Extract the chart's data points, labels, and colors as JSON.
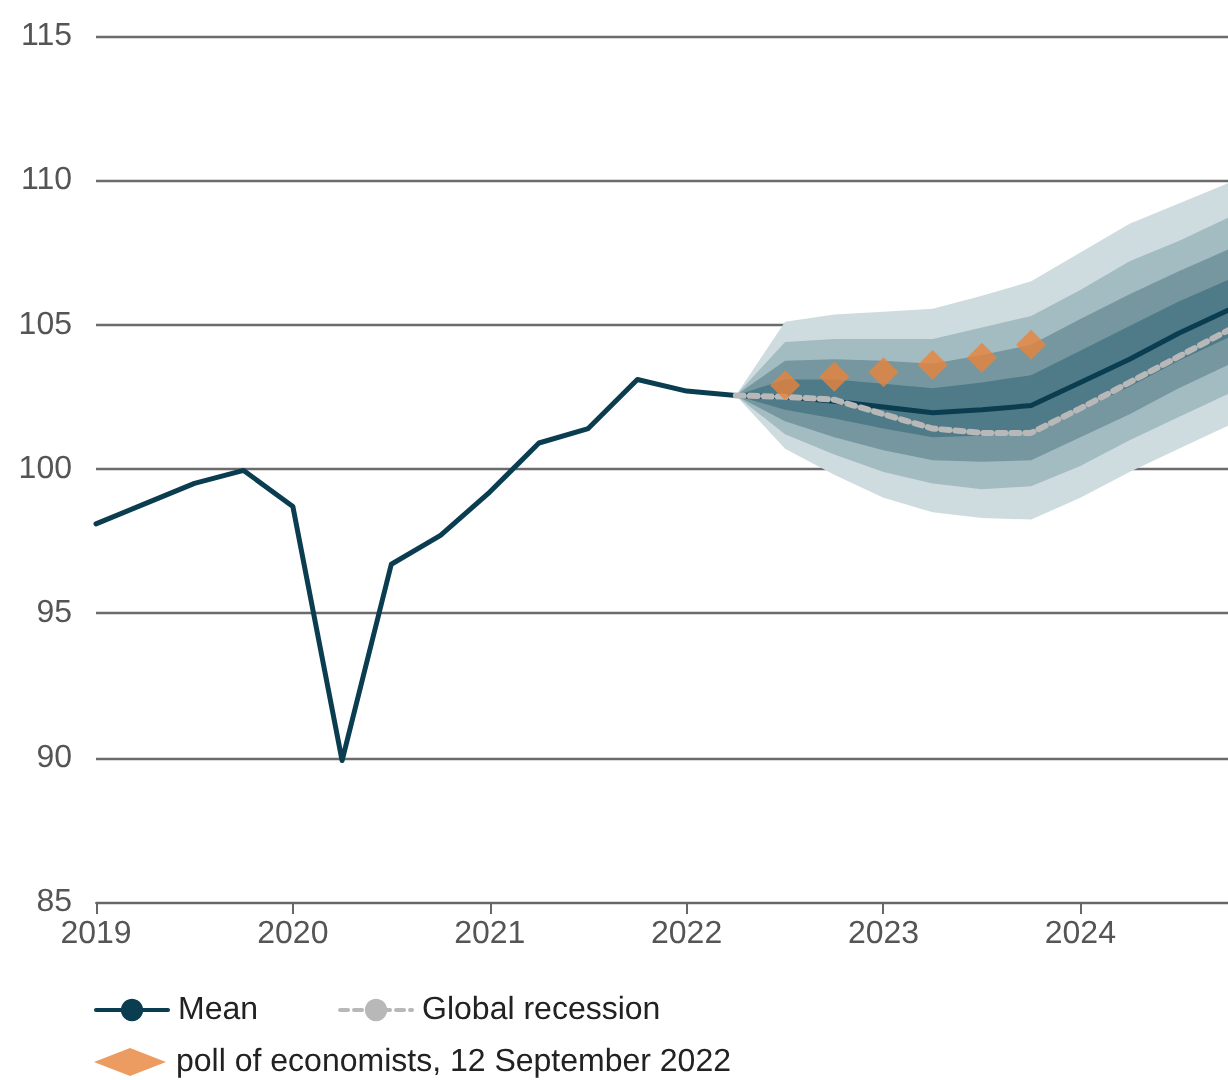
{
  "chart_data": {
    "type": "line",
    "xlim": [
      2019,
      2024.75
    ],
    "xticks": [
      2019,
      2020,
      2021,
      2022,
      2023,
      2024
    ],
    "ylim": [
      85,
      115
    ],
    "yticks": [
      85,
      90,
      95,
      100,
      105,
      110,
      115
    ],
    "grid": "y",
    "legend": "bottom",
    "series": [
      {
        "type": "area",
        "color": "#cfdcdf",
        "values": [
          null,
          null,
          null,
          null,
          null,
          null,
          null,
          null,
          null,
          null,
          null
        ],
        "x": [
          2022.25,
          2022.5,
          2022.75,
          2023,
          2023.25,
          2023.5,
          2023.75,
          2024,
          2024.25,
          2024.5,
          2024.75
        ],
        "lower": [
          102.55,
          100.7,
          99.8,
          99.0,
          98.5,
          98.3,
          98.25,
          99.0,
          99.9,
          100.7,
          101.5
        ],
        "upper": [
          102.55,
          105.1,
          105.35,
          105.45,
          105.55,
          106.0,
          106.5,
          107.5,
          108.5,
          109.2,
          109.9
        ]
      },
      {
        "type": "area",
        "color": "#a3bcc2",
        "values": [
          null,
          null,
          null,
          null,
          null,
          null,
          null,
          null,
          null,
          null,
          null
        ],
        "x": [
          2022.25,
          2022.5,
          2022.75,
          2023,
          2023.25,
          2023.5,
          2023.75,
          2024,
          2024.25,
          2024.5,
          2024.75
        ],
        "lower": [
          102.55,
          101.2,
          100.5,
          99.9,
          99.5,
          99.3,
          99.4,
          100.1,
          101.0,
          101.8,
          102.6
        ],
        "upper": [
          102.55,
          104.4,
          104.5,
          104.5,
          104.5,
          104.9,
          105.3,
          106.2,
          107.2,
          107.9,
          108.7
        ]
      },
      {
        "type": "area",
        "color": "#76979f",
        "values": [
          null,
          null,
          null,
          null,
          null,
          null,
          null,
          null,
          null,
          null,
          null
        ],
        "x": [
          2022.25,
          2022.5,
          2022.75,
          2023,
          2023.25,
          2023.5,
          2023.75,
          2024,
          2024.25,
          2024.5,
          2024.75
        ],
        "lower": [
          102.55,
          101.65,
          101.1,
          100.65,
          100.3,
          100.25,
          100.3,
          101.1,
          101.9,
          102.8,
          103.6
        ],
        "upper": [
          102.55,
          103.75,
          103.8,
          103.75,
          103.65,
          103.95,
          104.3,
          105.2,
          106.05,
          106.85,
          107.6
        ]
      },
      {
        "type": "area",
        "color": "#4f7a88",
        "values": [
          null,
          null,
          null,
          null,
          null,
          null,
          null,
          null,
          null,
          null,
          null
        ],
        "x": [
          2022.25,
          2022.5,
          2022.75,
          2023,
          2023.25,
          2023.5,
          2023.75,
          2024,
          2024.25,
          2024.5,
          2024.75
        ],
        "lower": [
          102.55,
          102.05,
          101.75,
          101.4,
          101.1,
          101.15,
          101.25,
          102.05,
          102.85,
          103.75,
          104.55
        ],
        "upper": [
          102.55,
          103.1,
          103.1,
          102.95,
          102.8,
          103.0,
          103.25,
          104.1,
          104.95,
          105.8,
          106.55
        ]
      },
      {
        "name": "Mean",
        "color": "#0b3d50",
        "marker": "none",
        "line_style": "solid",
        "x": [
          2019,
          2019.25,
          2019.5,
          2019.75,
          2020,
          2020.25,
          2020.5,
          2020.75,
          2021,
          2021.25,
          2021.5,
          2021.75,
          2022,
          2022.25,
          2022.5,
          2022.75,
          2023,
          2023.25,
          2023.5,
          2023.75,
          2024,
          2024.25,
          2024.5,
          2024.75
        ],
        "values": [
          98.1,
          98.8,
          99.5,
          99.95,
          98.7,
          89.9,
          96.7,
          97.7,
          99.2,
          100.9,
          101.4,
          103.1,
          102.7,
          102.55,
          102.5,
          102.35,
          102.15,
          101.95,
          102.05,
          102.2,
          103.0,
          103.8,
          104.7,
          105.5
        ]
      },
      {
        "name": "Global recession",
        "color": "#b8b8b8",
        "marker": "none",
        "line_style": "dashed",
        "x": [
          2022.25,
          2022.5,
          2022.75,
          2023,
          2023.25,
          2023.5,
          2023.75,
          2024,
          2024.25,
          2024.5,
          2024.75
        ],
        "values": [
          102.55,
          102.5,
          102.4,
          101.9,
          101.4,
          101.25,
          101.25,
          102.1,
          103.0,
          103.9,
          104.8
        ]
      },
      {
        "name": "poll of economists, 12 September 2022",
        "type": "scatter",
        "color": "#e8833a",
        "marker": "diamond",
        "x": [
          2022.5,
          2022.75,
          2023,
          2023.25,
          2023.5,
          2023.75
        ],
        "values": [
          102.9,
          103.2,
          103.35,
          103.6,
          103.85,
          104.3
        ]
      }
    ]
  }
}
